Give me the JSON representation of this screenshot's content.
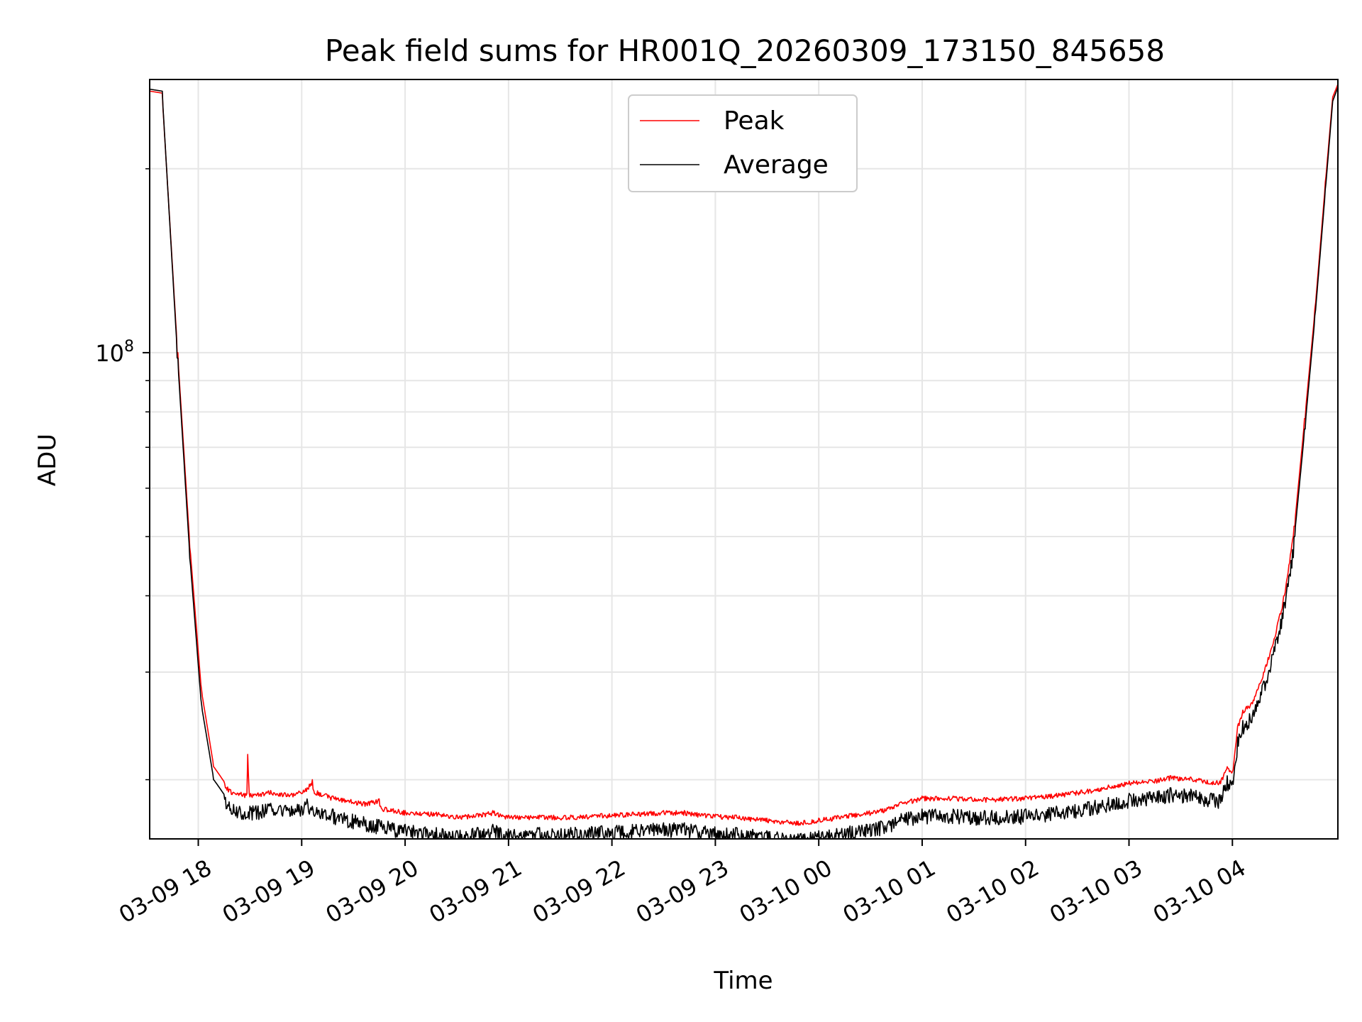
{
  "chart_data": {
    "type": "line",
    "title": "Peak field sums for HR001Q_20260309_173150_845658",
    "xlabel": "Time",
    "ylabel": "ADU",
    "yscale": "log",
    "ylim": [
      16000000,
      280000000
    ],
    "xlim_hours": [
      17.53,
      29.02
    ],
    "grid": true,
    "legend_position": "top-center",
    "y_ticks": [
      {
        "value": 100000000,
        "base": "10",
        "exp": "8"
      }
    ],
    "x_ticks": [
      {
        "hour": 18,
        "label": "03-09 18"
      },
      {
        "hour": 19,
        "label": "03-09 19"
      },
      {
        "hour": 20,
        "label": "03-09 20"
      },
      {
        "hour": 21,
        "label": "03-09 21"
      },
      {
        "hour": 22,
        "label": "03-09 22"
      },
      {
        "hour": 23,
        "label": "03-09 23"
      },
      {
        "hour": 24,
        "label": "03-10 00"
      },
      {
        "hour": 25,
        "label": "03-10 01"
      },
      {
        "hour": 26,
        "label": "03-10 02"
      },
      {
        "hour": 27,
        "label": "03-10 03"
      },
      {
        "hour": 28,
        "label": "03-10 04"
      }
    ],
    "series": [
      {
        "name": "Peak",
        "color": "#ff0000",
        "points": [
          [
            17.53,
            268000000
          ],
          [
            17.65,
            266000000
          ],
          [
            17.8,
            100000000
          ],
          [
            17.92,
            48000000
          ],
          [
            18.03,
            28000000
          ],
          [
            18.15,
            21000000
          ],
          [
            18.3,
            19300000
          ],
          [
            18.47,
            19000000
          ],
          [
            18.48,
            22000000
          ],
          [
            18.49,
            19000000
          ],
          [
            18.7,
            19200000
          ],
          [
            18.9,
            19000000
          ],
          [
            19.05,
            19400000
          ],
          [
            19.1,
            20000000
          ],
          [
            19.11,
            19300000
          ],
          [
            19.3,
            18800000
          ],
          [
            19.6,
            18400000
          ],
          [
            19.75,
            18600000
          ],
          [
            19.76,
            18100000
          ],
          [
            20.0,
            17800000
          ],
          [
            20.3,
            17700000
          ],
          [
            20.5,
            17500000
          ],
          [
            20.7,
            17600000
          ],
          [
            20.85,
            17800000
          ],
          [
            21.0,
            17500000
          ],
          [
            21.3,
            17500000
          ],
          [
            21.6,
            17500000
          ],
          [
            21.9,
            17600000
          ],
          [
            22.2,
            17700000
          ],
          [
            22.5,
            17800000
          ],
          [
            22.7,
            17800000
          ],
          [
            22.9,
            17600000
          ],
          [
            23.2,
            17500000
          ],
          [
            23.5,
            17300000
          ],
          [
            23.8,
            17100000
          ],
          [
            24.0,
            17300000
          ],
          [
            24.3,
            17600000
          ],
          [
            24.6,
            17900000
          ],
          [
            24.8,
            18400000
          ],
          [
            25.0,
            18800000
          ],
          [
            25.3,
            18800000
          ],
          [
            25.6,
            18700000
          ],
          [
            26.0,
            18800000
          ],
          [
            26.3,
            19000000
          ],
          [
            26.6,
            19300000
          ],
          [
            26.8,
            19600000
          ],
          [
            27.0,
            19900000
          ],
          [
            27.2,
            20000000
          ],
          [
            27.4,
            20300000
          ],
          [
            27.6,
            20200000
          ],
          [
            27.88,
            19900000
          ],
          [
            27.95,
            21000000
          ],
          [
            28.0,
            20600000
          ],
          [
            28.02,
            22000000
          ],
          [
            28.05,
            24500000
          ],
          [
            28.1,
            26000000
          ],
          [
            28.2,
            27000000
          ],
          [
            28.3,
            30000000
          ],
          [
            28.4,
            34000000
          ],
          [
            28.5,
            40000000
          ],
          [
            28.6,
            52000000
          ],
          [
            28.7,
            78000000
          ],
          [
            28.8,
            118000000
          ],
          [
            28.9,
            190000000
          ],
          [
            28.97,
            262000000
          ],
          [
            29.02,
            275000000
          ]
        ]
      },
      {
        "name": "Average",
        "color": "#000000",
        "points": [
          [
            17.53,
            270000000
          ],
          [
            17.65,
            268000000
          ],
          [
            17.8,
            98000000
          ],
          [
            17.92,
            46000000
          ],
          [
            18.03,
            26500000
          ],
          [
            18.15,
            20000000
          ],
          [
            18.3,
            18400000
          ],
          [
            18.5,
            18100000
          ],
          [
            18.7,
            18300000
          ],
          [
            18.9,
            18100000
          ],
          [
            19.05,
            18600000
          ],
          [
            19.3,
            17900000
          ],
          [
            19.6,
            17400000
          ],
          [
            20.0,
            16900000
          ],
          [
            20.3,
            16700000
          ],
          [
            20.5,
            16500000
          ],
          [
            20.7,
            16700000
          ],
          [
            20.85,
            16900000
          ],
          [
            21.0,
            16600000
          ],
          [
            21.3,
            16700000
          ],
          [
            21.6,
            16700000
          ],
          [
            21.9,
            16800000
          ],
          [
            22.2,
            16900000
          ],
          [
            22.5,
            17000000
          ],
          [
            22.7,
            17000000
          ],
          [
            22.9,
            16800000
          ],
          [
            23.2,
            16700000
          ],
          [
            23.5,
            16500000
          ],
          [
            23.8,
            16300000
          ],
          [
            24.0,
            16500000
          ],
          [
            24.3,
            16800000
          ],
          [
            24.6,
            17100000
          ],
          [
            24.8,
            17600000
          ],
          [
            25.0,
            17900000
          ],
          [
            25.3,
            17900000
          ],
          [
            25.6,
            17800000
          ],
          [
            26.0,
            17900000
          ],
          [
            26.3,
            18100000
          ],
          [
            26.6,
            18400000
          ],
          [
            26.8,
            18700000
          ],
          [
            27.0,
            19000000
          ],
          [
            27.2,
            19100000
          ],
          [
            27.4,
            19400000
          ],
          [
            27.6,
            19300000
          ],
          [
            27.88,
            18900000
          ],
          [
            27.95,
            20300000
          ],
          [
            28.0,
            19900000
          ],
          [
            28.02,
            21000000
          ],
          [
            28.05,
            23500000
          ],
          [
            28.1,
            25000000
          ],
          [
            28.2,
            26000000
          ],
          [
            28.3,
            29000000
          ],
          [
            28.4,
            33000000
          ],
          [
            28.5,
            39000000
          ],
          [
            28.6,
            50000000
          ],
          [
            28.7,
            75000000
          ],
          [
            28.8,
            115000000
          ],
          [
            28.9,
            185000000
          ],
          [
            28.97,
            258000000
          ],
          [
            29.02,
            272000000
          ]
        ]
      }
    ]
  }
}
